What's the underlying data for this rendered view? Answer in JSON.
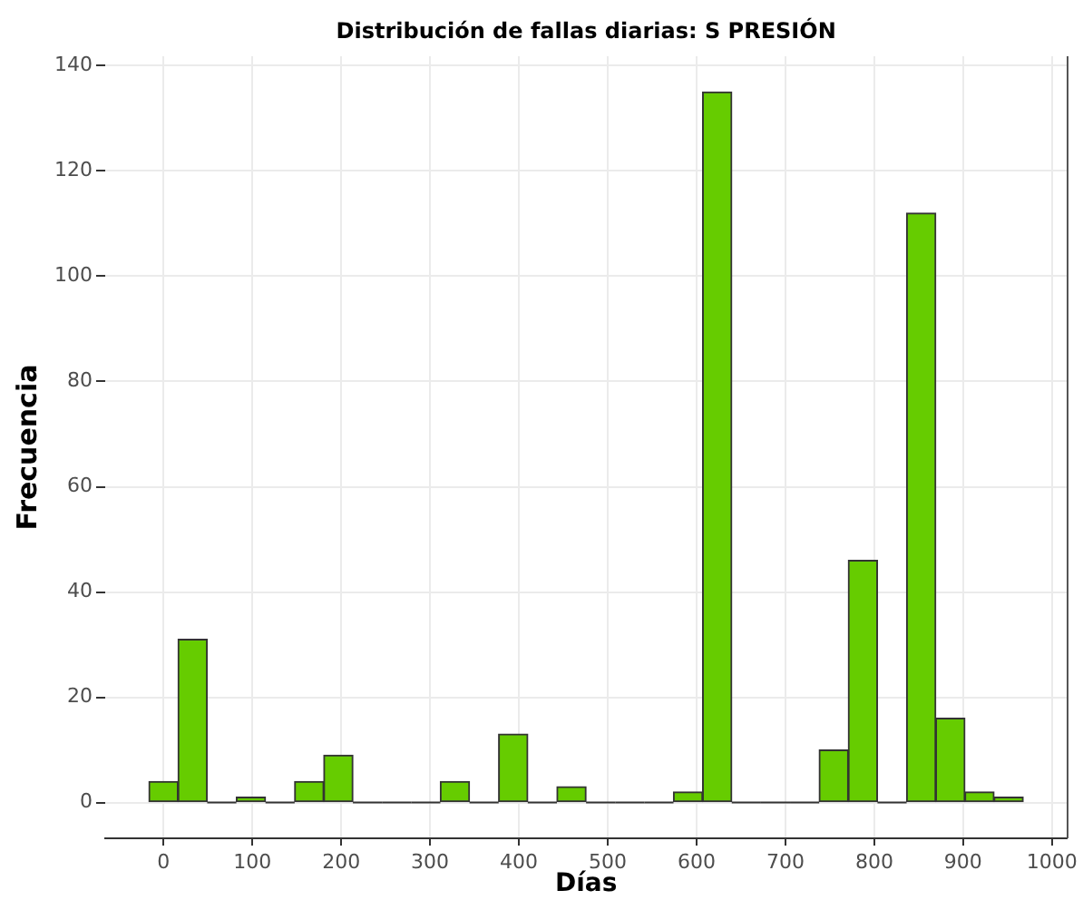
{
  "chart_data": {
    "type": "histogram",
    "title": "Distribución de fallas diarias: S PRESIÓN",
    "xlabel": "Días",
    "ylabel": "Frecuencia",
    "bins": [
      -16.4,
      16.4,
      49.2,
      82,
      114.8,
      147.6,
      180.4,
      213.2,
      246,
      278.8,
      311.6,
      344.4,
      377.2,
      410,
      442.8,
      475.6,
      508.4,
      541.2,
      574,
      606.8,
      639.6,
      672.4,
      705.2,
      738,
      770.8,
      803.6,
      836.4,
      869.2,
      902,
      934.8,
      967.6
    ],
    "values": [
      4,
      31,
      0,
      1,
      0,
      4,
      9,
      0,
      0,
      0,
      4,
      0,
      13,
      0,
      3,
      0,
      0,
      0,
      2,
      135,
      0,
      0,
      0,
      10,
      46,
      0,
      112,
      16,
      2,
      1
    ],
    "color": "#66cc00",
    "xlim": [
      -65.6,
      1016.8
    ],
    "ylim": [
      -6.8,
      141.8
    ],
    "xticks": [
      0,
      100,
      200,
      300,
      400,
      500,
      600,
      700,
      800,
      900,
      1000
    ],
    "yticks": [
      0,
      20,
      40,
      60,
      80,
      100,
      120,
      140
    ],
    "grid": true
  }
}
